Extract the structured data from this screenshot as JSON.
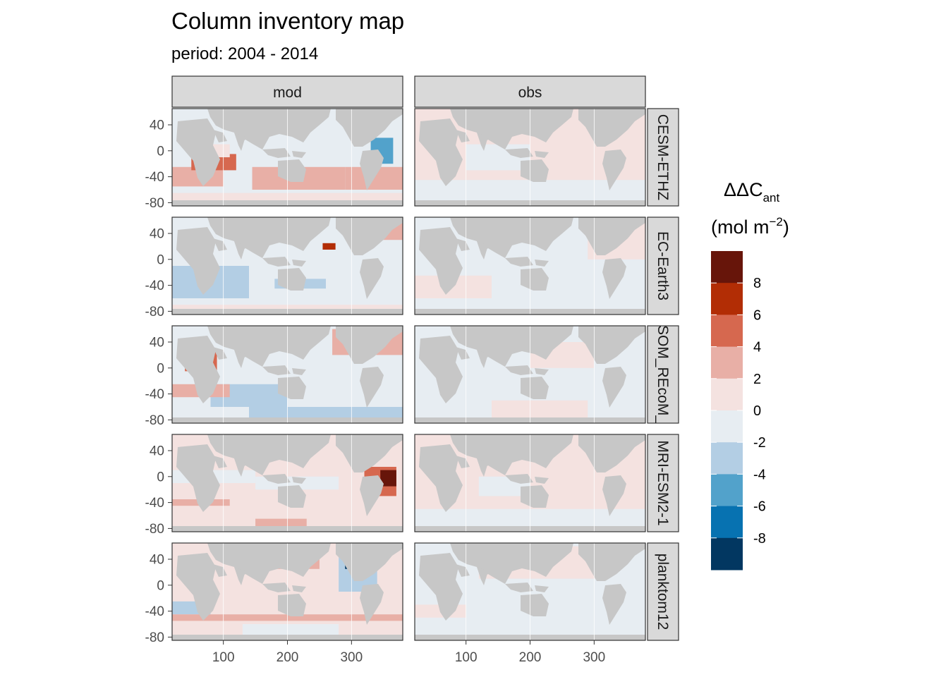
{
  "chart_data": {
    "type": "heatmap",
    "title": "Column inventory map",
    "subtitle": "period: 2004 - 2014",
    "facet_columns": [
      "mod",
      "obs"
    ],
    "facet_rows": [
      "CESM-ETHZ",
      "EC-Earth3",
      "FESOM_REcoM_LR",
      "MRI-ESM2-1",
      "planktom12"
    ],
    "x_ticks": [
      "100",
      "200",
      "300"
    ],
    "x_tick_values": [
      100,
      200,
      300
    ],
    "xlim": [
      20,
      380
    ],
    "y_ticks": [
      "40",
      "0",
      "-40",
      "-80"
    ],
    "y_tick_values": [
      40,
      0,
      -40,
      -80
    ],
    "ylim": [
      -85,
      65
    ],
    "grid": true,
    "legend": {
      "title_main": "ΔΔC",
      "title_sub": "ant",
      "unit_open": "(mol m",
      "unit_sup": "−2",
      "unit_close": ")",
      "placement": "right",
      "breaks": [
        "8",
        "6",
        "4",
        "2",
        "0",
        "-2",
        "-4",
        "-6",
        "-8"
      ],
      "bins": [
        {
          "range": [
            8,
            10
          ],
          "color": "#67150a"
        },
        {
          "range": [
            6,
            8
          ],
          "color": "#b22d05"
        },
        {
          "range": [
            4,
            6
          ],
          "color": "#d6684f"
        },
        {
          "range": [
            2,
            4
          ],
          "color": "#e8afa6"
        },
        {
          "range": [
            0,
            2
          ],
          "color": "#f4e2e0"
        },
        {
          "range": [
            -2,
            0
          ],
          "color": "#e7edf2"
        },
        {
          "range": [
            -4,
            -2
          ],
          "color": "#b3cee4"
        },
        {
          "range": [
            -6,
            -4
          ],
          "color": "#52a2cb"
        },
        {
          "range": [
            -8,
            -6
          ],
          "color": "#0772b1"
        },
        {
          "range": [
            -10,
            -8
          ],
          "color": "#023761"
        }
      ]
    },
    "colors": {
      "land": "#c7c7c7",
      "strip_bg": "#d9d9d9",
      "panel_border": "#333333"
    },
    "regions": [
      {
        "row": 0,
        "col": 0,
        "lon": [
          20,
          380
        ],
        "lat": [
          -85,
          65
        ],
        "value": -1
      },
      {
        "row": 0,
        "col": 0,
        "lon": [
          20,
          100
        ],
        "lat": [
          -55,
          -25
        ],
        "value": 3
      },
      {
        "row": 0,
        "col": 0,
        "lon": [
          50,
          120
        ],
        "lat": [
          -30,
          -5
        ],
        "value": 4.2
      },
      {
        "row": 0,
        "col": 0,
        "lon": [
          60,
          110
        ],
        "lat": [
          -10,
          10
        ],
        "value": 1
      },
      {
        "row": 0,
        "col": 0,
        "lon": [
          145,
          290
        ],
        "lat": [
          -60,
          -25
        ],
        "value": 3
      },
      {
        "row": 0,
        "col": 0,
        "lon": [
          290,
          380
        ],
        "lat": [
          -60,
          -25
        ],
        "value": 2
      },
      {
        "row": 0,
        "col": 0,
        "lon": [
          330,
          365
        ],
        "lat": [
          -20,
          20
        ],
        "value": -4.5
      },
      {
        "row": 0,
        "col": 0,
        "lon": [
          45,
          55
        ],
        "lat": [
          15,
          25
        ],
        "value": -9
      },
      {
        "row": 0,
        "col": 0,
        "lon": [
          20,
          380
        ],
        "lat": [
          -85,
          -65
        ],
        "value": 1
      },
      {
        "row": 1,
        "col": 0,
        "lon": [
          20,
          380
        ],
        "lat": [
          -85,
          65
        ],
        "value": -1
      },
      {
        "row": 1,
        "col": 0,
        "lon": [
          20,
          140
        ],
        "lat": [
          -60,
          -10
        ],
        "value": -3
      },
      {
        "row": 1,
        "col": 0,
        "lon": [
          55,
          75
        ],
        "lat": [
          5,
          25
        ],
        "value": -5
      },
      {
        "row": 1,
        "col": 0,
        "lon": [
          180,
          260
        ],
        "lat": [
          -45,
          -30
        ],
        "value": -3
      },
      {
        "row": 1,
        "col": 0,
        "lon": [
          300,
          380
        ],
        "lat": [
          30,
          65
        ],
        "value": 2.5
      },
      {
        "row": 1,
        "col": 0,
        "lon": [
          255,
          275
        ],
        "lat": [
          15,
          25
        ],
        "value": 7
      },
      {
        "row": 1,
        "col": 0,
        "lon": [
          20,
          380
        ],
        "lat": [
          -85,
          -70
        ],
        "value": 1
      },
      {
        "row": 2,
        "col": 0,
        "lon": [
          20,
          380
        ],
        "lat": [
          -85,
          65
        ],
        "value": -1
      },
      {
        "row": 2,
        "col": 0,
        "lon": [
          40,
          90
        ],
        "lat": [
          -5,
          25
        ],
        "value": 5
      },
      {
        "row": 2,
        "col": 0,
        "lon": [
          52,
          72
        ],
        "lat": [
          0,
          20
        ],
        "value": 9
      },
      {
        "row": 2,
        "col": 0,
        "lon": [
          80,
          200
        ],
        "lat": [
          -60,
          -25
        ],
        "value": -3
      },
      {
        "row": 2,
        "col": 0,
        "lon": [
          140,
          380
        ],
        "lat": [
          -80,
          -60
        ],
        "value": -3
      },
      {
        "row": 2,
        "col": 0,
        "lon": [
          270,
          380
        ],
        "lat": [
          20,
          60
        ],
        "value": 3
      },
      {
        "row": 2,
        "col": 0,
        "lon": [
          20,
          110
        ],
        "lat": [
          -45,
          -25
        ],
        "value": 3
      },
      {
        "row": 3,
        "col": 0,
        "lon": [
          20,
          380
        ],
        "lat": [
          -85,
          65
        ],
        "value": 1
      },
      {
        "row": 3,
        "col": 0,
        "lon": [
          55,
          75
        ],
        "lat": [
          0,
          20
        ],
        "value": -9
      },
      {
        "row": 3,
        "col": 0,
        "lon": [
          20,
          110
        ],
        "lat": [
          -45,
          -35
        ],
        "value": 3
      },
      {
        "row": 3,
        "col": 0,
        "lon": [
          320,
          370
        ],
        "lat": [
          -30,
          15
        ],
        "value": 4
      },
      {
        "row": 3,
        "col": 0,
        "lon": [
          345,
          370
        ],
        "lat": [
          -15,
          10
        ],
        "value": 9
      },
      {
        "row": 3,
        "col": 0,
        "lon": [
          150,
          230
        ],
        "lat": [
          -80,
          -65
        ],
        "value": 3
      },
      {
        "row": 3,
        "col": 0,
        "lon": [
          20,
          150
        ],
        "lat": [
          -10,
          10
        ],
        "value": -1
      },
      {
        "row": 3,
        "col": 0,
        "lon": [
          150,
          280
        ],
        "lat": [
          -20,
          0
        ],
        "value": -1
      },
      {
        "row": 4,
        "col": 0,
        "lon": [
          20,
          380
        ],
        "lat": [
          -85,
          65
        ],
        "value": 1
      },
      {
        "row": 4,
        "col": 0,
        "lon": [
          150,
          250
        ],
        "lat": [
          25,
          60
        ],
        "value": 3
      },
      {
        "row": 4,
        "col": 0,
        "lon": [
          200,
          240
        ],
        "lat": [
          40,
          60
        ],
        "value": 6
      },
      {
        "row": 4,
        "col": 0,
        "lon": [
          280,
          340
        ],
        "lat": [
          -10,
          60
        ],
        "value": -3
      },
      {
        "row": 4,
        "col": 0,
        "lon": [
          290,
          310
        ],
        "lat": [
          25,
          35
        ],
        "value": -9
      },
      {
        "row": 4,
        "col": 0,
        "lon": [
          20,
          80
        ],
        "lat": [
          -45,
          -25
        ],
        "value": -4
      },
      {
        "row": 4,
        "col": 0,
        "lon": [
          20,
          380
        ],
        "lat": [
          -55,
          -45
        ],
        "value": 3
      },
      {
        "row": 4,
        "col": 0,
        "lon": [
          130,
          280
        ],
        "lat": [
          -80,
          -60
        ],
        "value": -1
      },
      {
        "row": 0,
        "col": 1,
        "lon": [
          20,
          380
        ],
        "lat": [
          -85,
          65
        ],
        "value": 1
      },
      {
        "row": 0,
        "col": 1,
        "lon": [
          20,
          380
        ],
        "lat": [
          -85,
          -45
        ],
        "value": -1
      },
      {
        "row": 0,
        "col": 1,
        "lon": [
          100,
          200
        ],
        "lat": [
          -30,
          10
        ],
        "value": -1
      },
      {
        "row": 1,
        "col": 1,
        "lon": [
          20,
          380
        ],
        "lat": [
          -85,
          65
        ],
        "value": -1
      },
      {
        "row": 1,
        "col": 1,
        "lon": [
          20,
          140
        ],
        "lat": [
          -60,
          -25
        ],
        "value": 1
      },
      {
        "row": 1,
        "col": 1,
        "lon": [
          290,
          380
        ],
        "lat": [
          0,
          65
        ],
        "value": 1
      },
      {
        "row": 2,
        "col": 1,
        "lon": [
          20,
          380
        ],
        "lat": [
          -85,
          65
        ],
        "value": -1
      },
      {
        "row": 2,
        "col": 1,
        "lon": [
          140,
          290
        ],
        "lat": [
          -80,
          -50
        ],
        "value": 1
      },
      {
        "row": 2,
        "col": 1,
        "lon": [
          200,
          300
        ],
        "lat": [
          0,
          40
        ],
        "value": 1
      },
      {
        "row": 3,
        "col": 1,
        "lon": [
          20,
          380
        ],
        "lat": [
          -85,
          65
        ],
        "value": 1
      },
      {
        "row": 3,
        "col": 1,
        "lon": [
          20,
          380
        ],
        "lat": [
          -85,
          -50
        ],
        "value": -1
      },
      {
        "row": 3,
        "col": 1,
        "lon": [
          120,
          200
        ],
        "lat": [
          -30,
          0
        ],
        "value": -1
      },
      {
        "row": 4,
        "col": 1,
        "lon": [
          20,
          380
        ],
        "lat": [
          -85,
          65
        ],
        "value": -1
      },
      {
        "row": 4,
        "col": 1,
        "lon": [
          120,
          320
        ],
        "lat": [
          10,
          60
        ],
        "value": 1
      },
      {
        "row": 4,
        "col": 1,
        "lon": [
          20,
          100
        ],
        "lat": [
          -50,
          -30
        ],
        "value": 1
      }
    ]
  }
}
